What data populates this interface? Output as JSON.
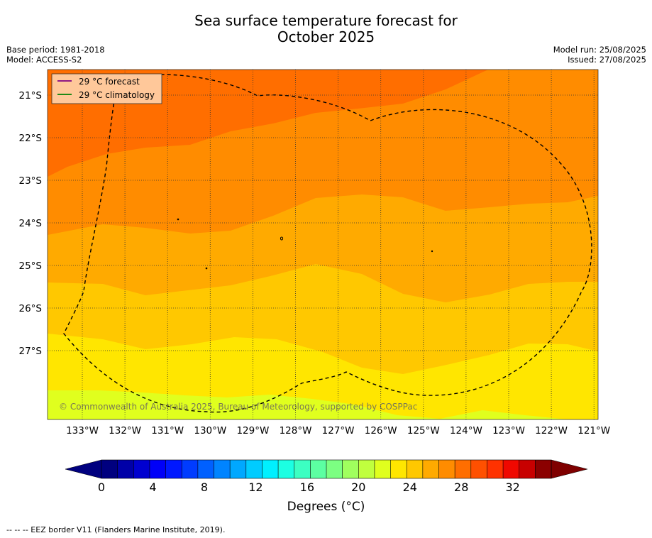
{
  "title_line1": "Sea surface temperature forecast for",
  "title_line2": "October 2025",
  "base_period": "Base period: 1981-2018",
  "model": "Model: ACCESS-S2",
  "model_run": "Model run: 25/08/2025",
  "issued": "Issued: 27/08/2025",
  "legend": [
    {
      "label": "29 °C  forecast",
      "color": "#800080"
    },
    {
      "label": "29 °C  climatology",
      "color": "#008000"
    }
  ],
  "lat_labels": [
    "21°S",
    "22°S",
    "23°S",
    "24°S",
    "25°S",
    "26°S",
    "27°S"
  ],
  "lon_labels": [
    "133°W",
    "132°W",
    "131°W",
    "130°W",
    "129°W",
    "128°W",
    "127°W",
    "126°W",
    "125°W",
    "124°W",
    "123°W",
    "122°W",
    "121°W"
  ],
  "copyright": "© Commonwealth of Australia 2025, Bureau of Meteorology, supported by COSPPac",
  "colorbar": {
    "tick_labels": [
      "0",
      "4",
      "8",
      "12",
      "16",
      "20",
      "24",
      "28",
      "32"
    ],
    "label": "Degrees (°C)",
    "colors": [
      "#00007f",
      "#0000a8",
      "#0000d0",
      "#0000f8",
      "#0018ff",
      "#003cff",
      "#0060ff",
      "#0084ff",
      "#00a8ff",
      "#00ccff",
      "#00f0ff",
      "#1cffe2",
      "#3cffc2",
      "#5cffa2",
      "#7cff82",
      "#a0ff5e",
      "#c0ff3e",
      "#e0ff1e",
      "#ffe600",
      "#ffc800",
      "#ffaa00",
      "#ff8c00",
      "#ff6e00",
      "#ff5000",
      "#ff3200",
      "#f00800",
      "#c80000",
      "#8b0000"
    ],
    "under_color": "#00007f",
    "over_color": "#7f0000"
  },
  "footer": "--  --  -- EEZ border V11 (Flanders Marine Institute, 2019).",
  "map_data": {
    "field": "forecast sea surface temperature (°C)",
    "bands": [
      {
        "range": "28-29",
        "color": "#ff6e00"
      },
      {
        "range": "27-28",
        "color": "#ff8c00"
      },
      {
        "range": "26-27",
        "color": "#ffaa00"
      },
      {
        "range": "25-26",
        "color": "#ffc800"
      },
      {
        "range": "24-25",
        "color": "#ffe600"
      },
      {
        "range": "23-24",
        "color": "#e0ff1e"
      }
    ],
    "lon_range": [
      "133.7°W",
      "121°W"
    ],
    "lat_range": [
      "20.4°S",
      "28.6°S"
    ],
    "eez_border": "dashed black"
  }
}
